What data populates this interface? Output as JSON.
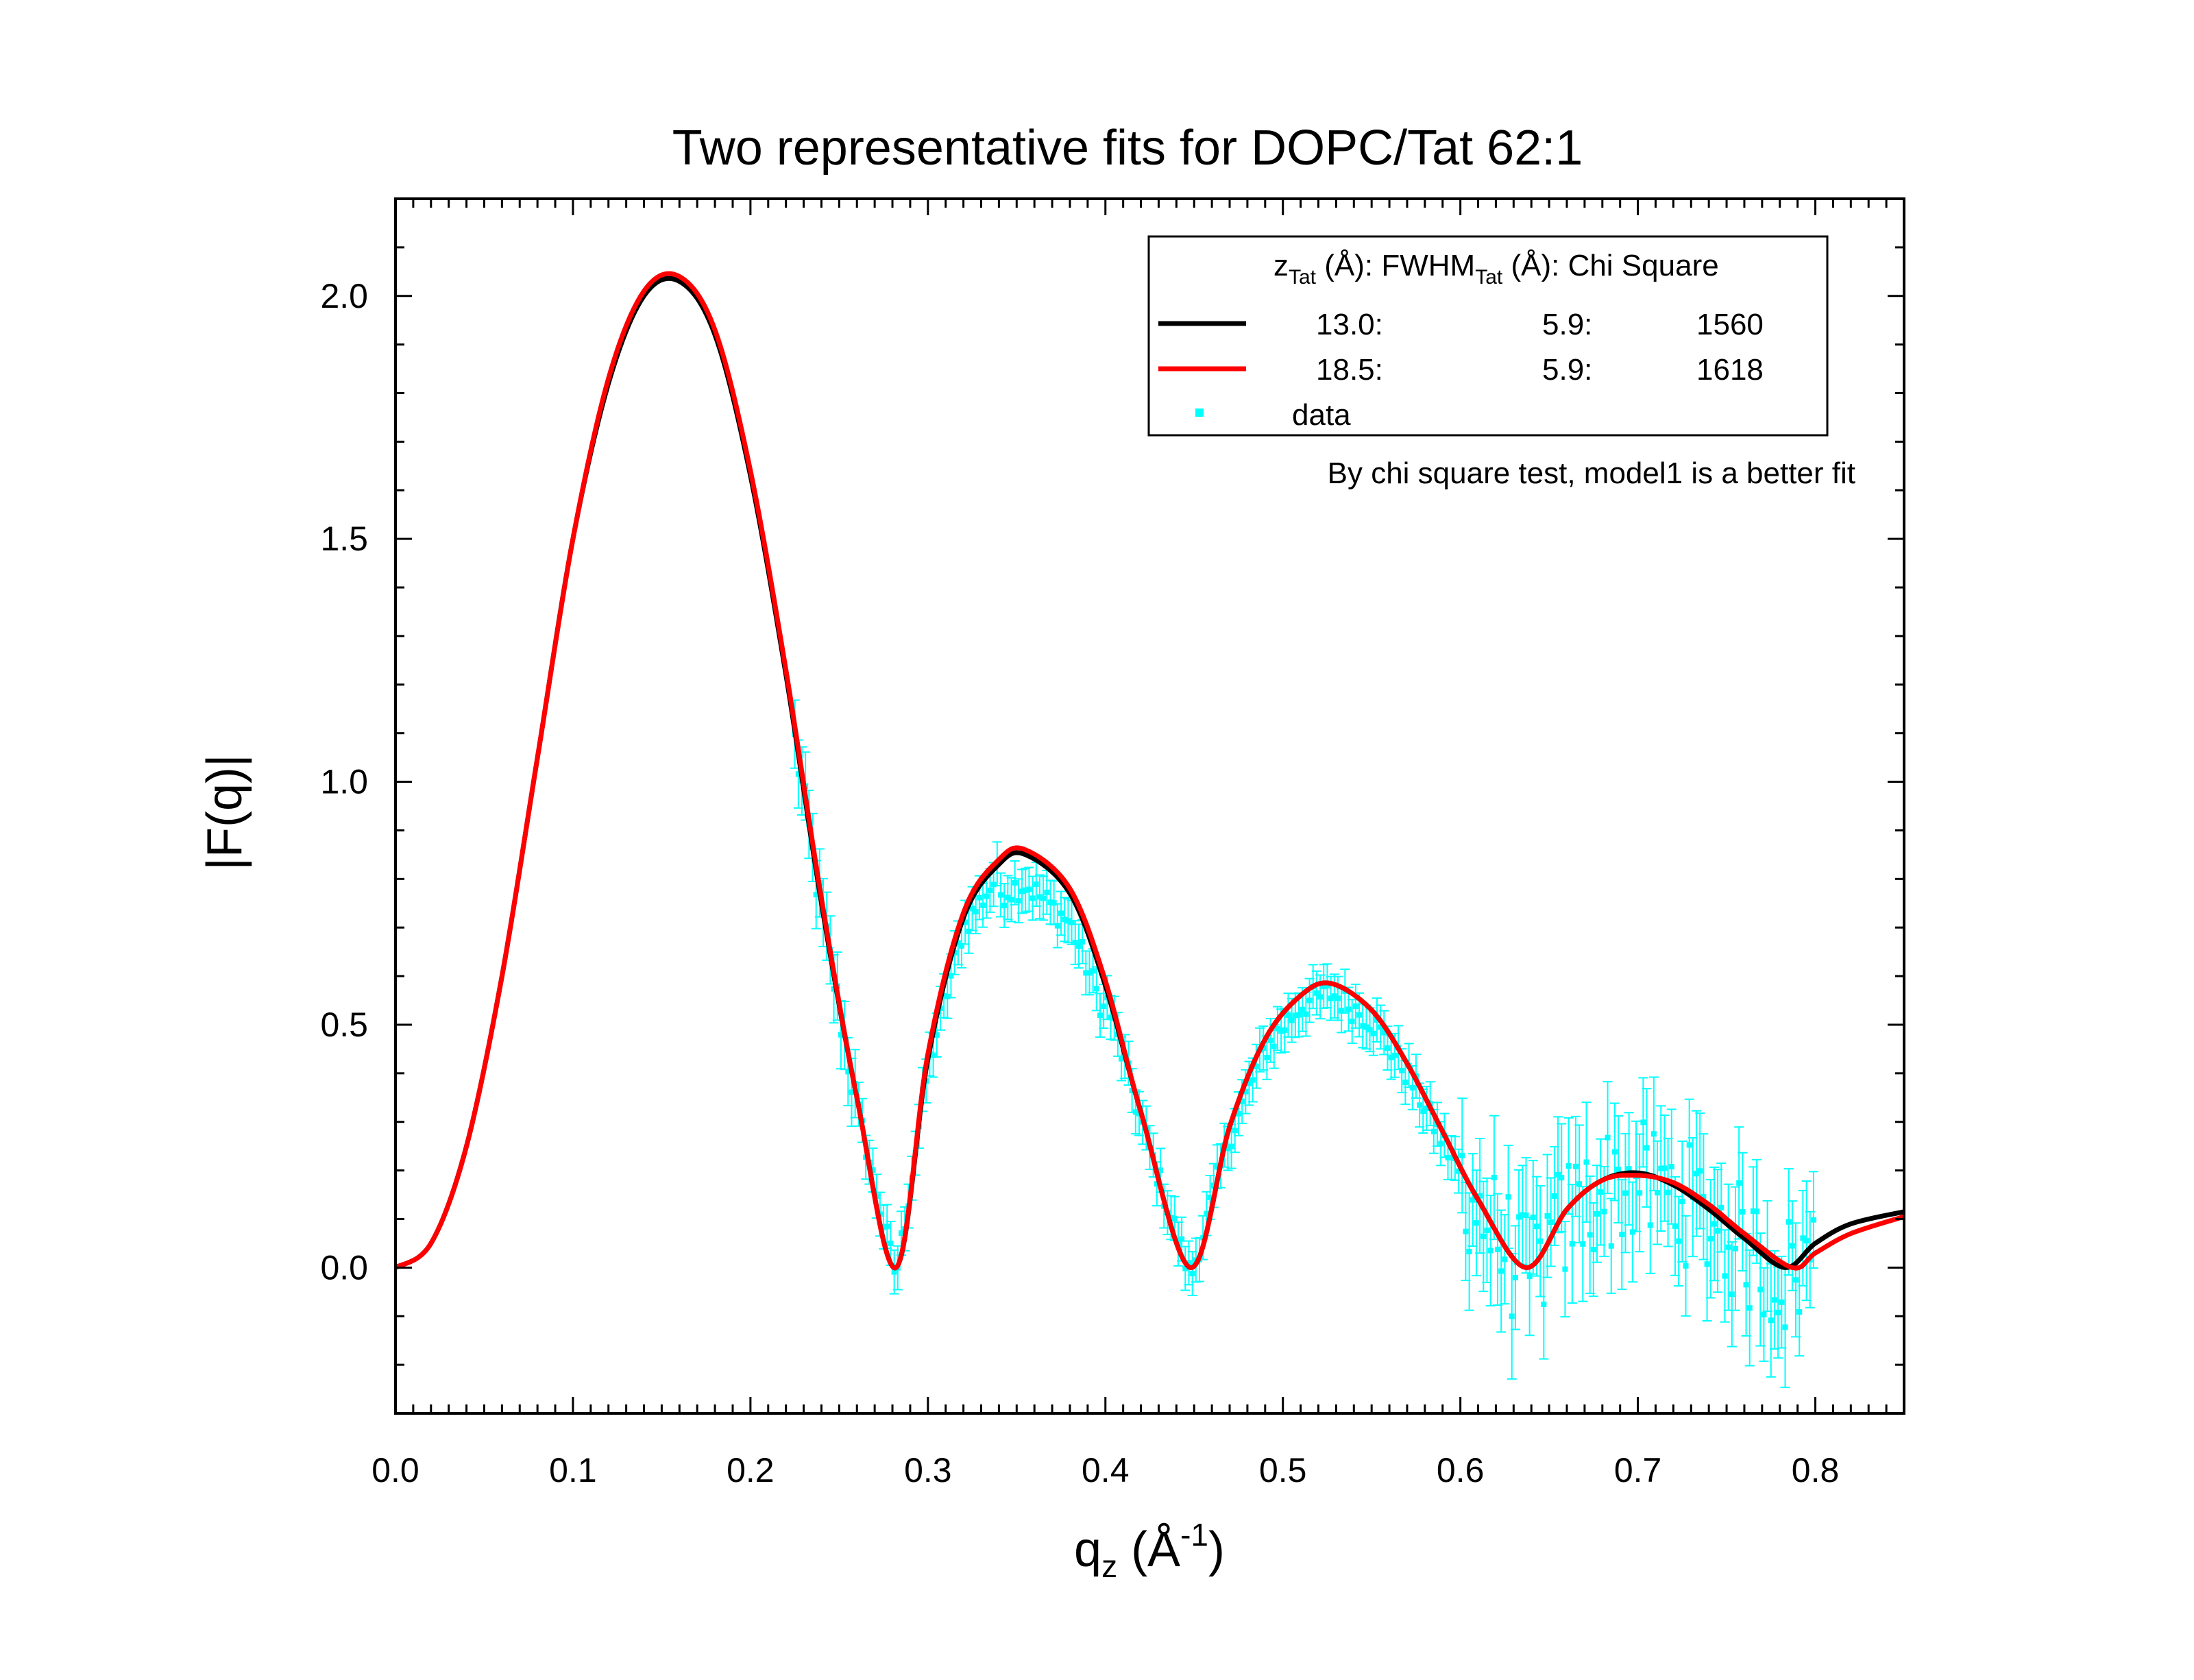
{
  "chart_data": {
    "type": "line",
    "title": "Two representative fits for DOPC/Tat 62:1",
    "xlabel": {
      "base": "q",
      "sub": "z",
      "paren_open": " (Å",
      "sup": "-1",
      "paren_close": ")"
    },
    "ylabel": "|F(q)|",
    "xlim": [
      0.0,
      0.85
    ],
    "ylim": [
      -0.3,
      2.2
    ],
    "x_ticks": [
      "0.0",
      "0.1",
      "0.2",
      "0.3",
      "0.4",
      "0.5",
      "0.6",
      "0.7",
      "0.8"
    ],
    "y_ticks": [
      "0.0",
      "0.5",
      "1.0",
      "1.5",
      "2.0"
    ],
    "grid": false,
    "legend": {
      "position": "top-right",
      "header": {
        "z_base": "z",
        "z_sub": "Tat",
        "z_unit": " (Å): ",
        "fwhm_base": "FWHM",
        "fwhm_sub": "Tat",
        "fwhm_unit": " (Å): ",
        "chi": "Chi Square"
      },
      "entries": [
        {
          "z": "13.0:",
          "fwhm": "5.9:",
          "chi": "1560",
          "color": "#000000",
          "kind": "line"
        },
        {
          "z": "18.5:",
          "fwhm": "5.9:",
          "chi": "1618",
          "color": "#ff0000",
          "kind": "line"
        },
        {
          "label": "data",
          "color": "#00ffff",
          "kind": "marker"
        }
      ]
    },
    "annotation": "By chi square test, model1 is a better fit",
    "series": [
      {
        "id": "model-1",
        "color": "#000000",
        "x": [
          0.0,
          0.02,
          0.04,
          0.06,
          0.08,
          0.1,
          0.12,
          0.14,
          0.16,
          0.18,
          0.2,
          0.22,
          0.24,
          0.26,
          0.282,
          0.3,
          0.32,
          0.34,
          0.355,
          0.38,
          0.4,
          0.42,
          0.448,
          0.47,
          0.49,
          0.51,
          0.527,
          0.55,
          0.57,
          0.59,
          0.61,
          0.637,
          0.66,
          0.68,
          0.7,
          0.72,
          0.74,
          0.76,
          0.783,
          0.8,
          0.82,
          0.85
        ],
        "y": [
          0.0,
          0.05,
          0.25,
          0.6,
          1.05,
          1.5,
          1.82,
          2.0,
          2.03,
          1.92,
          1.63,
          1.22,
          0.75,
          0.35,
          0.0,
          0.43,
          0.72,
          0.83,
          0.85,
          0.77,
          0.58,
          0.32,
          0.0,
          0.29,
          0.47,
          0.56,
          0.585,
          0.53,
          0.42,
          0.28,
          0.14,
          0.0,
          0.12,
          0.18,
          0.195,
          0.17,
          0.12,
          0.06,
          0.0,
          0.05,
          0.09,
          0.115
        ]
      },
      {
        "id": "model-2",
        "color": "#ff0000",
        "x": [
          0.0,
          0.02,
          0.04,
          0.06,
          0.08,
          0.1,
          0.12,
          0.14,
          0.16,
          0.18,
          0.2,
          0.22,
          0.24,
          0.26,
          0.282,
          0.3,
          0.32,
          0.34,
          0.355,
          0.38,
          0.4,
          0.42,
          0.448,
          0.47,
          0.49,
          0.51,
          0.527,
          0.55,
          0.57,
          0.59,
          0.61,
          0.637,
          0.66,
          0.68,
          0.7,
          0.72,
          0.74,
          0.76,
          0.787,
          0.8,
          0.82,
          0.85
        ],
        "y": [
          0.0,
          0.05,
          0.25,
          0.6,
          1.05,
          1.5,
          1.83,
          2.01,
          2.04,
          1.93,
          1.64,
          1.23,
          0.76,
          0.35,
          0.0,
          0.44,
          0.73,
          0.84,
          0.86,
          0.78,
          0.59,
          0.32,
          0.0,
          0.29,
          0.47,
          0.56,
          0.585,
          0.53,
          0.42,
          0.28,
          0.14,
          0.0,
          0.12,
          0.18,
          0.19,
          0.175,
          0.13,
          0.07,
          0.0,
          0.03,
          0.07,
          0.105
        ]
      }
    ],
    "data_series": {
      "name": "data",
      "color": "#00ffff",
      "x_start": 0.225,
      "x_end": 0.8,
      "x_step": 0.002
    }
  }
}
